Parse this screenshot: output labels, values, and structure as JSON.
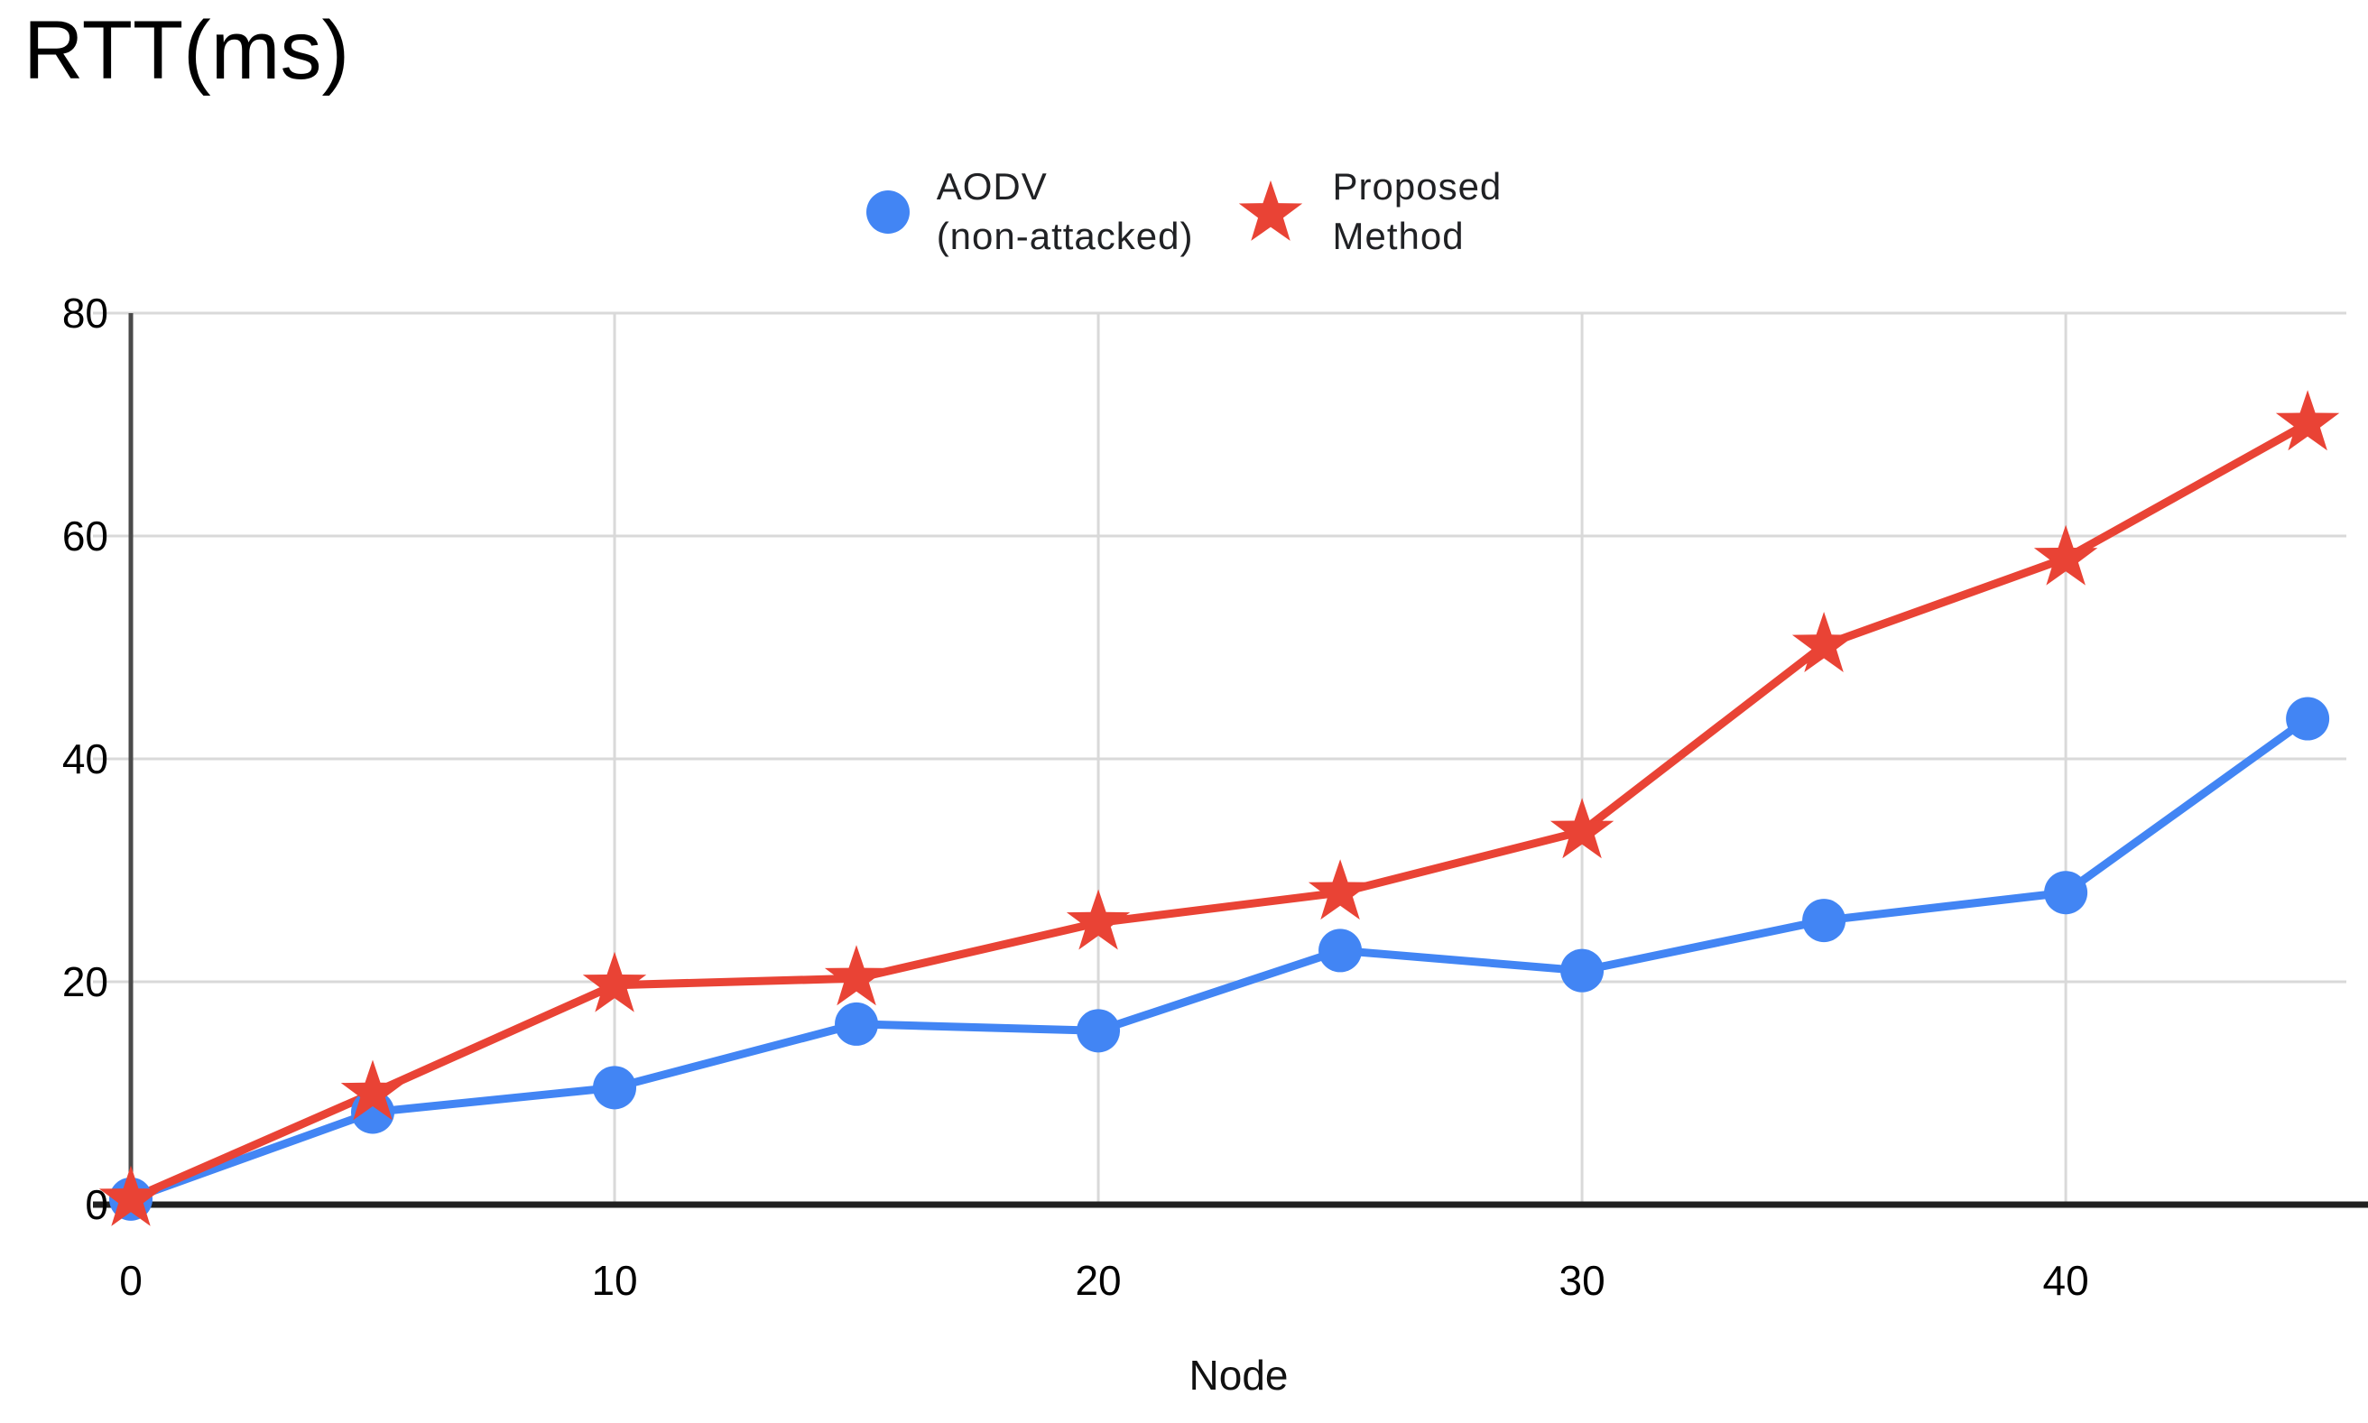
{
  "chart_data": {
    "type": "line",
    "title": "RTT(ms)",
    "xlabel": "Node",
    "ylabel": "",
    "x": [
      0,
      5,
      10,
      15,
      20,
      25,
      30,
      35,
      40,
      45
    ],
    "xlim": [
      0,
      45.8
    ],
    "ylim": [
      0,
      80
    ],
    "xticks": [
      0,
      10,
      20,
      30,
      40
    ],
    "yticks": [
      0,
      20,
      40,
      60,
      80
    ],
    "grid": true,
    "legend_position": "top-center",
    "series": [
      {
        "name": "AODV (non-attacked)",
        "name_lines": [
          "AODV",
          "(non-attacked)"
        ],
        "marker": "circle",
        "color": "#4285f4",
        "values": [
          0.5,
          8.3,
          10.5,
          16.2,
          15.6,
          22.8,
          21.0,
          25.5,
          28.0,
          43.6
        ]
      },
      {
        "name": "Proposed Method",
        "name_lines": [
          "Proposed",
          "Method"
        ],
        "marker": "star",
        "color": "#e94335",
        "values": [
          0.5,
          10.0,
          19.7,
          20.3,
          25.3,
          28.0,
          33.5,
          50.2,
          58.0,
          70.1
        ]
      }
    ],
    "colors": {
      "background": "#ffffff",
      "grid": "#d9d9d9",
      "x_axis": "#212121",
      "y_axis": "#4a4a4a",
      "tick_text": "#000000",
      "axis_label_text": "#111111",
      "legend_text": "#202124",
      "title_text": "#000000"
    }
  }
}
